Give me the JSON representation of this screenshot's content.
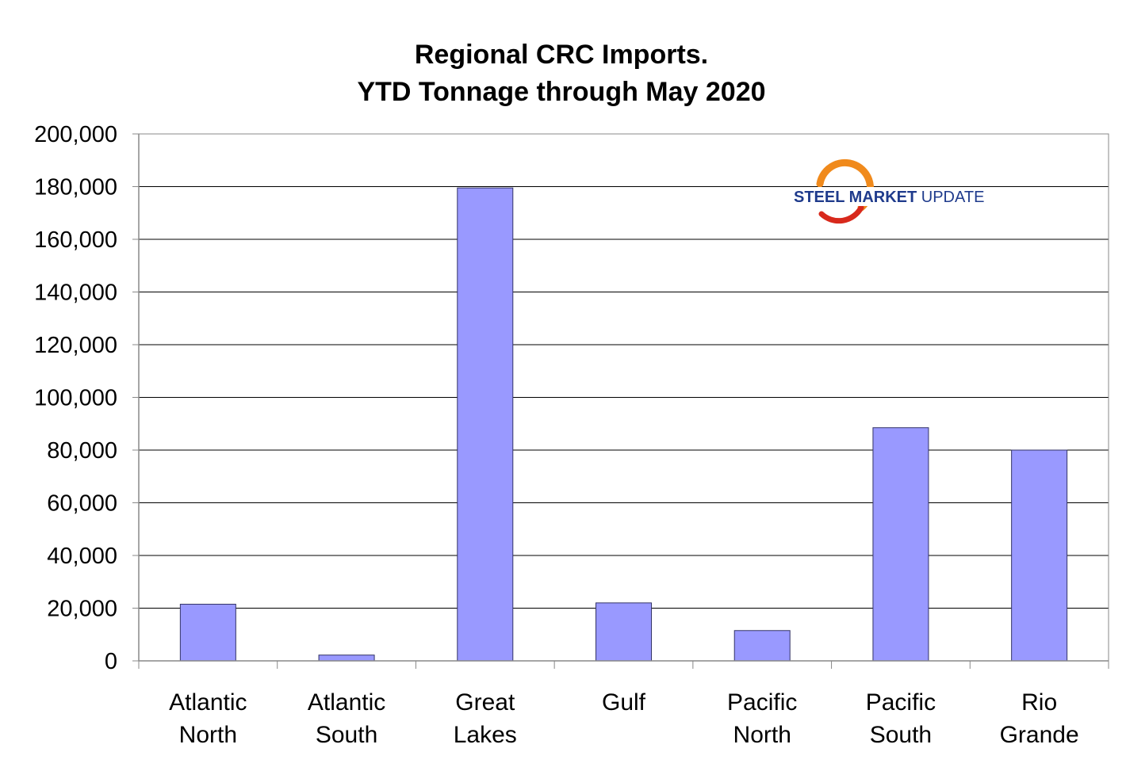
{
  "chart_data": {
    "type": "bar",
    "title": [
      "Regional CRC Imports.",
      "YTD Tonnage through May 2020"
    ],
    "xlabel": "",
    "ylabel": "",
    "categories": [
      [
        "Atlantic",
        "North"
      ],
      [
        "Atlantic",
        "South"
      ],
      [
        "Great",
        "Lakes"
      ],
      [
        "Gulf"
      ],
      [
        "Pacific",
        "North"
      ],
      [
        "Pacific",
        "South"
      ],
      [
        "Rio",
        "Grande"
      ]
    ],
    "values": [
      21500,
      2200,
      179500,
      22000,
      11500,
      88500,
      80000
    ],
    "ylim": [
      0,
      200000
    ],
    "yticks": [
      0,
      20000,
      40000,
      60000,
      80000,
      100000,
      120000,
      140000,
      160000,
      180000,
      200000
    ],
    "ytick_labels": [
      "0",
      "20,000",
      "40,000",
      "60,000",
      "80,000",
      "100,000",
      "120,000",
      "140,000",
      "160,000",
      "180,000",
      "200,000"
    ],
    "grid": true,
    "legend": "none",
    "colors": {
      "bar_fill": "#9999ff",
      "bar_stroke": "#333366",
      "grid": "#000000",
      "axis": "#888888"
    }
  },
  "logo": {
    "name": "steel-market-update-logo",
    "text_bold": "STEEL",
    "text_mid": "MARKET",
    "text_light": "UPDATE",
    "colors": {
      "navy": "#1f3b8c",
      "orange": "#f08a1c",
      "red": "#d8291c"
    }
  }
}
